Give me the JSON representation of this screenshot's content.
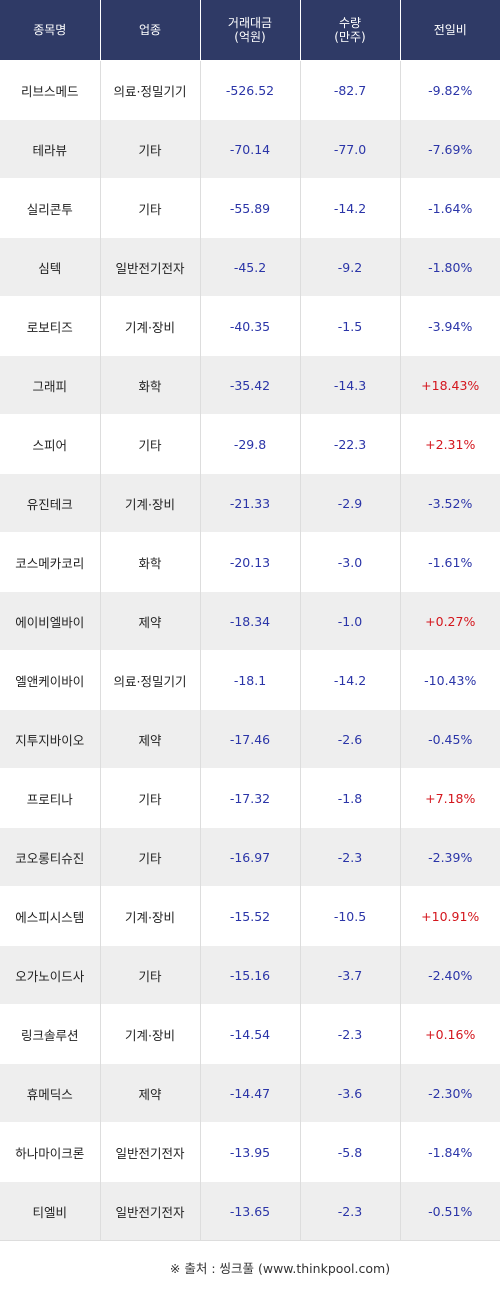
{
  "headers": {
    "name": "종목명",
    "sector": "업종",
    "amount_line1": "거래대금",
    "amount_line2": "(억원)",
    "volume_line1": "수량",
    "volume_line2": "(만주)",
    "change": "전일비"
  },
  "rows": [
    {
      "name": "리브스메드",
      "sector": "의료·정밀기기",
      "amount": "-526.52",
      "volume": "-82.7",
      "change": "-9.82%",
      "dir": "down"
    },
    {
      "name": "테라뷰",
      "sector": "기타",
      "amount": "-70.14",
      "volume": "-77.0",
      "change": "-7.69%",
      "dir": "down"
    },
    {
      "name": "실리콘투",
      "sector": "기타",
      "amount": "-55.89",
      "volume": "-14.2",
      "change": "-1.64%",
      "dir": "down"
    },
    {
      "name": "심텍",
      "sector": "일반전기전자",
      "amount": "-45.2",
      "volume": "-9.2",
      "change": "-1.80%",
      "dir": "down"
    },
    {
      "name": "로보티즈",
      "sector": "기계·장비",
      "amount": "-40.35",
      "volume": "-1.5",
      "change": "-3.94%",
      "dir": "down"
    },
    {
      "name": "그래피",
      "sector": "화학",
      "amount": "-35.42",
      "volume": "-14.3",
      "change": "+18.43%",
      "dir": "up"
    },
    {
      "name": "스피어",
      "sector": "기타",
      "amount": "-29.8",
      "volume": "-22.3",
      "change": "+2.31%",
      "dir": "up"
    },
    {
      "name": "유진테크",
      "sector": "기계·장비",
      "amount": "-21.33",
      "volume": "-2.9",
      "change": "-3.52%",
      "dir": "down"
    },
    {
      "name": "코스메카코리",
      "sector": "화학",
      "amount": "-20.13",
      "volume": "-3.0",
      "change": "-1.61%",
      "dir": "down"
    },
    {
      "name": "에이비엘바이",
      "sector": "제약",
      "amount": "-18.34",
      "volume": "-1.0",
      "change": "+0.27%",
      "dir": "up"
    },
    {
      "name": "엘앤케이바이",
      "sector": "의료·정밀기기",
      "amount": "-18.1",
      "volume": "-14.2",
      "change": "-10.43%",
      "dir": "down"
    },
    {
      "name": "지투지바이오",
      "sector": "제약",
      "amount": "-17.46",
      "volume": "-2.6",
      "change": "-0.45%",
      "dir": "down"
    },
    {
      "name": "프로티나",
      "sector": "기타",
      "amount": "-17.32",
      "volume": "-1.8",
      "change": "+7.18%",
      "dir": "up"
    },
    {
      "name": "코오롱티슈진",
      "sector": "기타",
      "amount": "-16.97",
      "volume": "-2.3",
      "change": "-2.39%",
      "dir": "down"
    },
    {
      "name": "에스피시스템",
      "sector": "기계·장비",
      "amount": "-15.52",
      "volume": "-10.5",
      "change": "+10.91%",
      "dir": "up"
    },
    {
      "name": "오가노이드사",
      "sector": "기타",
      "amount": "-15.16",
      "volume": "-3.7",
      "change": "-2.40%",
      "dir": "down"
    },
    {
      "name": "링크솔루션",
      "sector": "기계·장비",
      "amount": "-14.54",
      "volume": "-2.3",
      "change": "+0.16%",
      "dir": "up"
    },
    {
      "name": "휴메딕스",
      "sector": "제약",
      "amount": "-14.47",
      "volume": "-3.6",
      "change": "-2.30%",
      "dir": "down"
    },
    {
      "name": "하나마이크론",
      "sector": "일반전기전자",
      "amount": "-13.95",
      "volume": "-5.8",
      "change": "-1.84%",
      "dir": "down"
    },
    {
      "name": "티엘비",
      "sector": "일반전기전자",
      "amount": "-13.65",
      "volume": "-2.3",
      "change": "-0.51%",
      "dir": "down"
    }
  ],
  "colors": {
    "header_bg": "#2f3a66",
    "negative": "#2b35a8",
    "positive": "#d4161d"
  },
  "source": "※ 출처 : 씽크풀 (www.thinkpool.com)"
}
